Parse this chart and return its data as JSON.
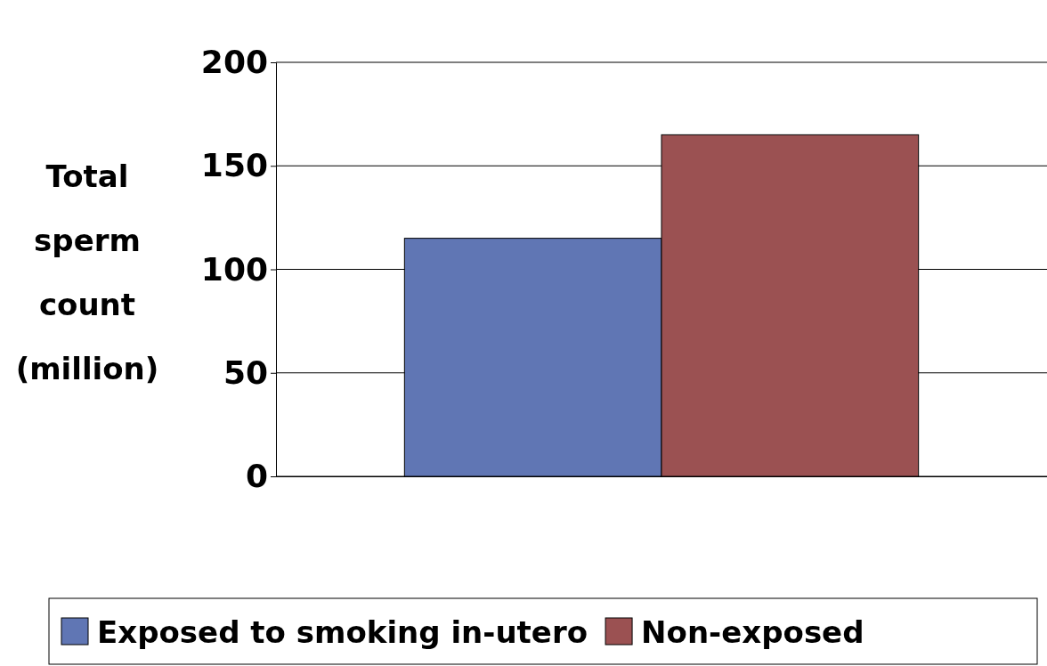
{
  "chart_data": {
    "type": "bar",
    "ylabel": "Total sperm count (million)",
    "categories": [
      null
    ],
    "series": [
      {
        "name": "Exposed to smoking in-utero",
        "color": "#6076b4",
        "values": [
          115
        ]
      },
      {
        "name": "Non-exposed",
        "color": "#9b5152",
        "values": [
          165
        ]
      }
    ],
    "ylim": [
      0,
      200
    ],
    "yticks": [
      0,
      50,
      100,
      150,
      200
    ],
    "grid": "y",
    "legend": "bottom"
  }
}
